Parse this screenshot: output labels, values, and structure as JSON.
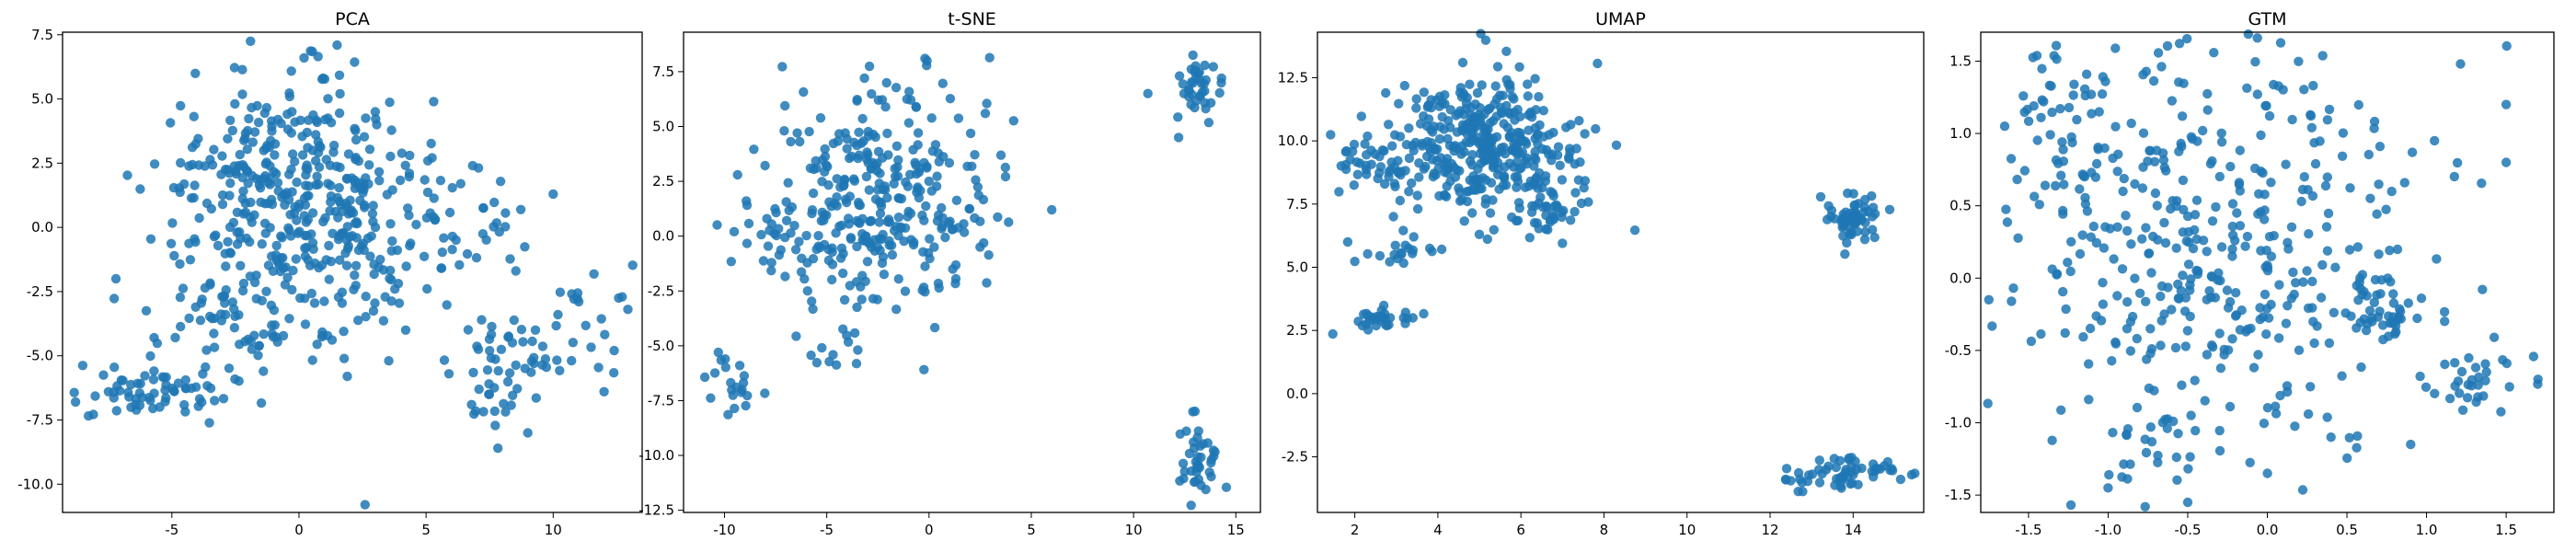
{
  "colors": {
    "series": "#1f77b4",
    "background": "#ffffff",
    "axes": "#000000"
  },
  "chart_data": [
    {
      "type": "scatter",
      "title": "PCA",
      "xlabel": "",
      "ylabel": "",
      "xlim": [
        -9.3,
        13.5
      ],
      "ylim": [
        -11.1,
        7.6
      ],
      "xticks": [
        "-5",
        "0",
        "5",
        "10"
      ],
      "xtick_values": [
        -5,
        0,
        5,
        10
      ],
      "yticks": [
        "-10.0",
        "-7.5",
        "-5.0",
        "-2.5",
        "0.0",
        "2.5",
        "5.0",
        "7.5"
      ],
      "ytick_values": [
        -10,
        -7.5,
        -5,
        -2.5,
        0,
        2.5,
        5,
        7.5
      ],
      "grid": false,
      "clusters": [
        {
          "cx": -0.5,
          "cy": 1.5,
          "sx": 2.6,
          "sy": 2.1,
          "n": 330
        },
        {
          "cx": 2.5,
          "cy": -0.5,
          "sx": 2.2,
          "sy": 1.8,
          "n": 110
        },
        {
          "cx": -5.8,
          "cy": -6.4,
          "sx": 1.4,
          "sy": 0.55,
          "n": 65
        },
        {
          "cx": -2.5,
          "cy": -3.6,
          "sx": 2.0,
          "sy": 1.1,
          "n": 60
        },
        {
          "cx": 9.0,
          "cy": -4.8,
          "sx": 1.3,
          "sy": 0.7,
          "n": 35
        },
        {
          "cx": 7.8,
          "cy": -6.8,
          "sx": 0.9,
          "sy": 0.6,
          "n": 22
        },
        {
          "cx": 11.3,
          "cy": -3.2,
          "sx": 1.1,
          "sy": 1.2,
          "n": 18
        },
        {
          "cx": 6.8,
          "cy": 0.2,
          "sx": 1.2,
          "sy": 1.3,
          "n": 25
        }
      ],
      "points": [
        {
          "x": 2.6,
          "y": -10.8
        },
        {
          "x": 1.5,
          "y": 7.1
        },
        {
          "x": 12.4,
          "y": -4.8
        },
        {
          "x": 4.2,
          "y": -4.0
        },
        {
          "x": 5.3,
          "y": 4.9
        },
        {
          "x": 1.9,
          "y": -5.8
        },
        {
          "x": -7.2,
          "y": -2.0
        },
        {
          "x": 3.0,
          "y": 4.5
        },
        {
          "x": 5.9,
          "y": -5.7
        },
        {
          "x": 12.0,
          "y": -6.4
        },
        {
          "x": -1.4,
          "y": -5.6
        },
        {
          "x": 9.0,
          "y": -8.0
        },
        {
          "x": 0.2,
          "y": 6.6
        },
        {
          "x": 10.0,
          "y": 1.3
        }
      ]
    },
    {
      "type": "scatter",
      "title": "t-SNE",
      "xlabel": "",
      "ylabel": "",
      "xlim": [
        -12.0,
        16.2
      ],
      "ylim": [
        -12.6,
        9.3
      ],
      "xticks": [
        "-10",
        "-5",
        "0",
        "5",
        "10",
        "15"
      ],
      "xtick_values": [
        -10,
        -5,
        0,
        5,
        10,
        15
      ],
      "yticks": [
        "-12.5",
        "-10.0",
        "-7.5",
        "-5.0",
        "-2.5",
        "0.0",
        "2.5",
        "5.0",
        "7.5"
      ],
      "ytick_values": [
        -12.5,
        -10,
        -7.5,
        -5,
        -2.5,
        0,
        2.5,
        5,
        7.5
      ],
      "grid": false,
      "clusters": [
        {
          "cx": -2.5,
          "cy": 1.8,
          "sx": 2.7,
          "sy": 2.6,
          "n": 330
        },
        {
          "cx": -7.8,
          "cy": 0.0,
          "sx": 0.7,
          "sy": 1.0,
          "n": 18
        },
        {
          "cx": -9.6,
          "cy": -6.9,
          "sx": 0.5,
          "sy": 0.8,
          "n": 20
        },
        {
          "cx": -4.0,
          "cy": -5.0,
          "sx": 0.6,
          "sy": 0.5,
          "n": 10
        },
        {
          "cx": 13.2,
          "cy": 6.7,
          "sx": 0.5,
          "sy": 0.6,
          "n": 38
        },
        {
          "cx": 13.3,
          "cy": -10.2,
          "sx": 0.6,
          "sy": 0.9,
          "n": 38
        }
      ],
      "points": [
        {
          "x": 6.0,
          "y": 1.2
        },
        {
          "x": 10.7,
          "y": 6.5
        },
        {
          "x": 12.2,
          "y": 4.5
        },
        {
          "x": -10.3,
          "y": -5.3
        },
        {
          "x": -5.8,
          "y": 3.1
        },
        {
          "x": -0.2,
          "y": 8.1
        },
        {
          "x": -0.1,
          "y": 8.0
        },
        {
          "x": 12.9,
          "y": -8.0
        }
      ]
    },
    {
      "type": "scatter",
      "title": "UMAP",
      "xlabel": "",
      "ylabel": "",
      "xlim": [
        1.1,
        15.7
      ],
      "ylim": [
        -4.7,
        14.3
      ],
      "xticks": [
        "2",
        "4",
        "6",
        "8",
        "10",
        "12",
        "14"
      ],
      "xtick_values": [
        2,
        4,
        6,
        8,
        10,
        12,
        14
      ],
      "yticks": [
        "-2.5",
        "0.0",
        "2.5",
        "5.0",
        "7.5",
        "10.0",
        "12.5"
      ],
      "ytick_values": [
        -2.5,
        0,
        2.5,
        5,
        7.5,
        10,
        12.5
      ],
      "grid": false,
      "clusters": [
        {
          "cx": 5.2,
          "cy": 9.8,
          "sx": 1.1,
          "sy": 1.4,
          "n": 360
        },
        {
          "cx": 2.6,
          "cy": 8.9,
          "sx": 0.6,
          "sy": 0.5,
          "n": 45
        },
        {
          "cx": 6.6,
          "cy": 7.0,
          "sx": 0.5,
          "sy": 0.6,
          "n": 35
        },
        {
          "cx": 3.0,
          "cy": 5.6,
          "sx": 0.4,
          "sy": 0.5,
          "n": 20
        },
        {
          "cx": 2.6,
          "cy": 3.0,
          "sx": 0.4,
          "sy": 0.3,
          "n": 30
        },
        {
          "cx": 14.0,
          "cy": 7.0,
          "sx": 0.35,
          "sy": 0.45,
          "n": 60
        },
        {
          "cx": 13.8,
          "cy": -3.2,
          "sx": 0.7,
          "sy": 0.35,
          "n": 60
        }
      ],
      "points": [
        {
          "x": 3.4,
          "y": 3.0
        },
        {
          "x": 1.8,
          "y": 9.6
        },
        {
          "x": 4.6,
          "y": 13.1
        },
        {
          "x": 7.4,
          "y": 10.8
        },
        {
          "x": 5.0,
          "y": 6.3
        }
      ]
    },
    {
      "type": "scatter",
      "title": "GTM",
      "xlabel": "",
      "ylabel": "",
      "xlim": [
        -1.8,
        1.8
      ],
      "ylim": [
        -1.62,
        1.7
      ],
      "xticks": [
        "-1.5",
        "-1.0",
        "-0.5",
        "0.0",
        "0.5",
        "1.0",
        "1.5"
      ],
      "xtick_values": [
        -1.5,
        -1,
        -0.5,
        0,
        0.5,
        1,
        1.5
      ],
      "yticks": [
        "-1.5",
        "-1.0",
        "-0.5",
        "0.0",
        "0.5",
        "1.0",
        "1.5"
      ],
      "ytick_values": [
        -1.5,
        -1,
        -0.5,
        0,
        0.5,
        1,
        1.5
      ],
      "grid": false,
      "clusters": [
        {
          "cx": -0.4,
          "cy": 0.3,
          "sx": 0.65,
          "sy": 0.7,
          "n": 420
        },
        {
          "cx": 0.7,
          "cy": -0.2,
          "sx": 0.12,
          "sy": 0.12,
          "n": 40
        },
        {
          "cx": 1.3,
          "cy": -0.7,
          "sx": 0.2,
          "sy": 0.1,
          "n": 30
        },
        {
          "cx": -0.6,
          "cy": -1.1,
          "sx": 0.25,
          "sy": 0.2,
          "n": 30
        },
        {
          "cx": -1.3,
          "cy": 1.3,
          "sx": 0.15,
          "sy": 0.2,
          "n": 25
        }
      ],
      "points": [
        {
          "x": 1.5,
          "y": 1.2
        },
        {
          "x": 1.5,
          "y": 0.8
        },
        {
          "x": 1.7,
          "y": -0.7
        },
        {
          "x": -0.5,
          "y": -1.55
        },
        {
          "x": -1.65,
          "y": 1.05
        },
        {
          "x": 0.9,
          "y": -1.15
        },
        {
          "x": 0.4,
          "y": -1.1
        },
        {
          "x": -1.0,
          "y": -1.45
        },
        {
          "x": 1.05,
          "y": 0.95
        }
      ]
    }
  ]
}
